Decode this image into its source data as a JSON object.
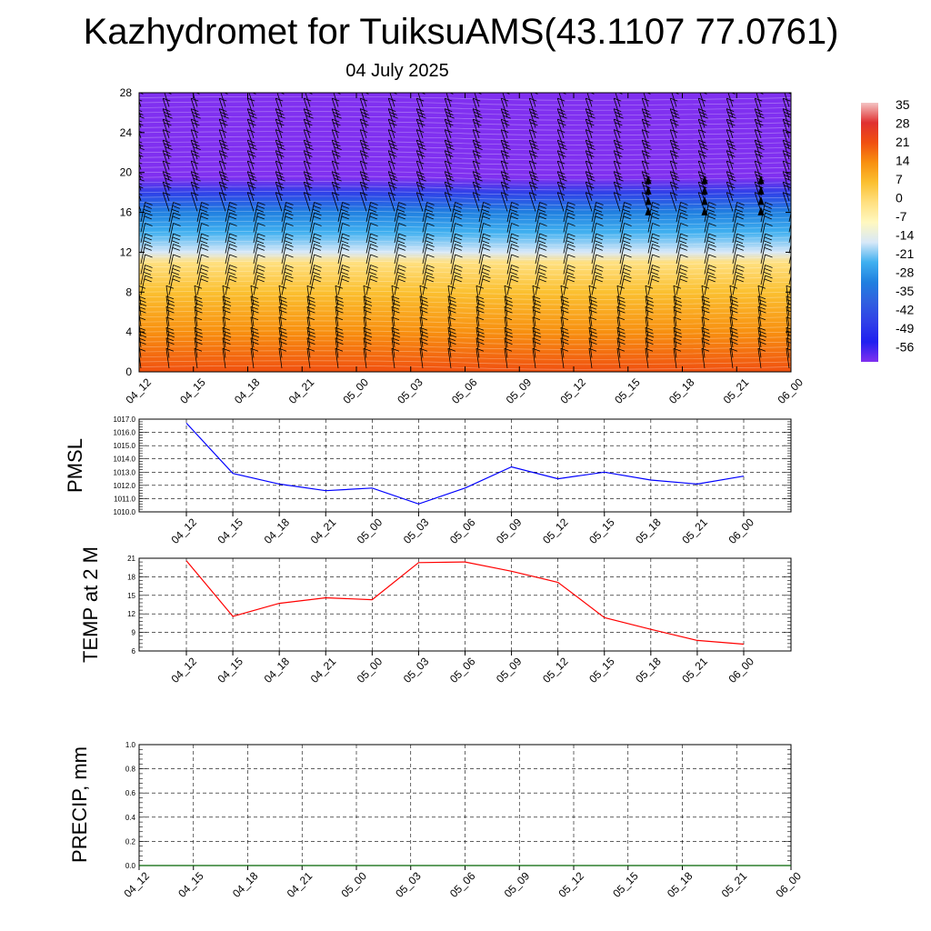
{
  "title": "Kazhydromet for TuiksuAMS(43.1107 77.0761)",
  "subtitle": "04 July 2025",
  "time_labels": [
    "04_12",
    "04_15",
    "04_18",
    "04_21",
    "05_00",
    "05_03",
    "05_06",
    "05_09",
    "05_12",
    "05_15",
    "05_18",
    "05_21",
    "06_00"
  ],
  "colorbar": {
    "labels": [
      "35",
      "28",
      "21",
      "14",
      "7",
      "0",
      "-7",
      "-14",
      "-21",
      "-28",
      "-35",
      "-42",
      "-49",
      "-56"
    ],
    "colors": [
      "#f4c4c4",
      "#e03030",
      "#f05010",
      "#f89010",
      "#fbc030",
      "#ffe080",
      "#fff8c0",
      "#d8e8f8",
      "#40b0f0",
      "#2080e0",
      "#3060e0",
      "#3040e8",
      "#2020f0",
      "#8030f0"
    ]
  },
  "chart_data": [
    {
      "type": "heatmap",
      "panel": "cross-section",
      "categories": [
        "04_12",
        "04_15",
        "04_18",
        "04_21",
        "05_00",
        "05_03",
        "05_06",
        "05_09",
        "05_12",
        "05_15",
        "05_18",
        "05_21",
        "06_00"
      ],
      "ylim": [
        0,
        28
      ],
      "yticks": [
        "0",
        "4",
        "8",
        "12",
        "16",
        "20",
        "24",
        "28"
      ],
      "z_profile": [
        {
          "y": 0,
          "value": 21
        },
        {
          "y": 4,
          "value": 14
        },
        {
          "y": 8,
          "value": 7
        },
        {
          "y": 11,
          "value": 0
        },
        {
          "y": 12,
          "value": -14
        },
        {
          "y": 14,
          "value": -21
        },
        {
          "y": 16,
          "value": -28
        },
        {
          "y": 18,
          "value": -42
        },
        {
          "y": 19.5,
          "value": -56
        },
        {
          "y": 21,
          "value": -56
        },
        {
          "y": 28,
          "value": -56
        }
      ],
      "overlay": "wind barbs"
    },
    {
      "type": "line",
      "panel": "pmsl",
      "ylabel": "PMSL",
      "categories": [
        "04_12",
        "04_15",
        "04_18",
        "04_21",
        "05_00",
        "05_03",
        "05_06",
        "05_09",
        "05_12",
        "05_15",
        "05_18",
        "05_21",
        "06_00"
      ],
      "ylim": [
        1010,
        1017
      ],
      "yticks": [
        "1010.0",
        "1011.0",
        "1012.0",
        "1013.0",
        "1014.0",
        "1015.0",
        "1016.0",
        "1017.0"
      ],
      "series": [
        {
          "color": "#0000ff",
          "values": [
            1016.7,
            1012.9,
            1012.1,
            1011.6,
            1011.8,
            1010.6,
            1011.8,
            1013.4,
            1012.5,
            1013.0,
            1012.4,
            1012.1,
            1012.7
          ]
        }
      ],
      "grid": true
    },
    {
      "type": "line",
      "panel": "temp",
      "ylabel": "TEMP at 2 M",
      "categories": [
        "04_12",
        "04_15",
        "04_18",
        "04_21",
        "05_00",
        "05_03",
        "05_06",
        "05_09",
        "05_12",
        "05_15",
        "05_18",
        "05_21",
        "06_00"
      ],
      "ylim": [
        6,
        21
      ],
      "yticks": [
        "6",
        "9",
        "12",
        "15",
        "18",
        "21"
      ],
      "series": [
        {
          "color": "#ff0000",
          "values": [
            20.6,
            11.6,
            13.7,
            14.6,
            14.3,
            20.3,
            20.4,
            18.9,
            17.1,
            11.4,
            9.5,
            7.7,
            7.1
          ]
        }
      ],
      "grid": true
    },
    {
      "type": "line",
      "panel": "precip",
      "ylabel": "PRECIP, mm",
      "categories": [
        "04_12",
        "04_15",
        "04_18",
        "04_21",
        "05_00",
        "05_03",
        "05_06",
        "05_09",
        "05_12",
        "05_15",
        "05_18",
        "05_21",
        "06_00"
      ],
      "ylim": [
        0,
        1
      ],
      "yticks": [
        "0.0",
        "0.2",
        "0.4",
        "0.6",
        "0.8",
        "1.0"
      ],
      "series": [
        {
          "color": "#006400",
          "values": [
            0,
            0,
            0,
            0,
            0,
            0,
            0,
            0,
            0,
            0,
            0,
            0,
            0
          ]
        }
      ],
      "grid": true
    }
  ]
}
